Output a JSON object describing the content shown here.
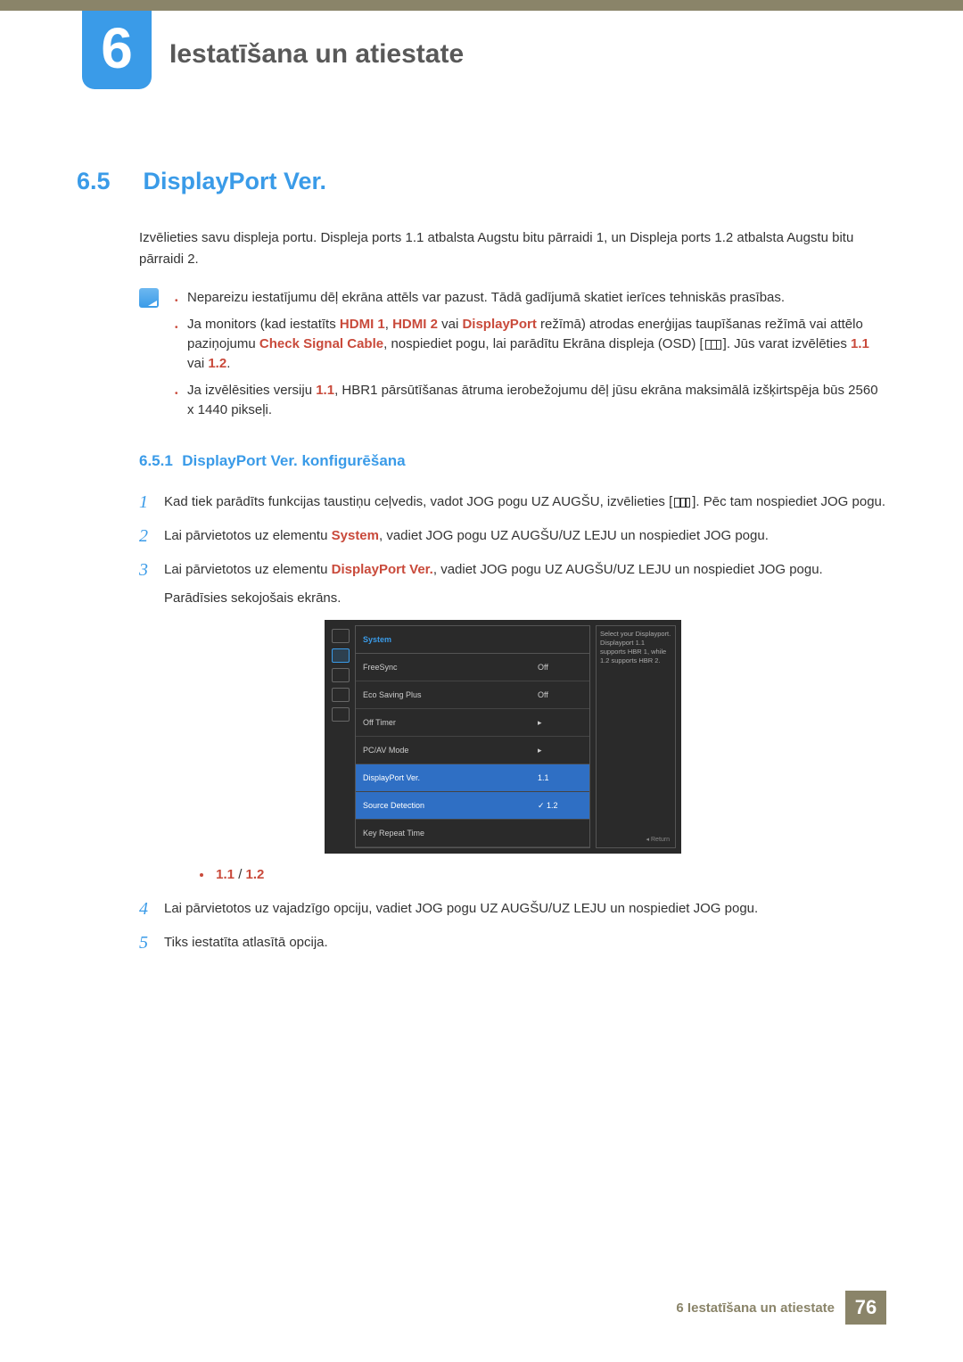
{
  "colors": {
    "accent_blue": "#3a9be8",
    "accent_red": "#c94a3b",
    "footer_olive": "#8a8469",
    "text": "#333333"
  },
  "chapter": {
    "number": "6",
    "title": "Iestatīšana un atiestate"
  },
  "section": {
    "number": "6.5",
    "title": "DisplayPort Ver.",
    "intro": "Izvēlieties savu displeja portu. Displeja ports 1.1 atbalsta Augstu bitu pārraidi 1, un Displeja ports 1.2 atbalsta Augstu bitu pārraidi 2."
  },
  "notes": {
    "n1": "Nepareizu iestatījumu dēļ ekrāna attēls var pazust. Tādā gadījumā skatiet ierīces tehniskās prasības.",
    "n2_a": "Ja monitors (kad iestatīts ",
    "n2_hdmi1": "HDMI 1",
    "n2_sep1": ", ",
    "n2_hdmi2": "HDMI 2",
    "n2_sep2": " vai ",
    "n2_dp": "DisplayPort",
    "n2_b": " režīmā) atrodas enerģijas taupīšanas režīmā vai attēlo paziņojumu ",
    "n2_check": "Check Signal Cable",
    "n2_c": ", nospiediet pogu, lai parādītu Ekrāna displeja (OSD) [",
    "n2_d": "]. Jūs varat izvēlēties ",
    "n2_v11": "1.1",
    "n2_sep3": " vai ",
    "n2_v12": "1.2",
    "n2_e": ".",
    "n3_a": "Ja izvēlēsities versiju ",
    "n3_v": "1.1",
    "n3_b": ", HBR1 pārsūtīšanas ātruma ierobežojumu dēļ jūsu ekrāna maksimālā izšķirtspēja būs 2560 x 1440 pikseļi."
  },
  "subsection": {
    "number": "6.5.1",
    "title": "DisplayPort Ver. konfigurēšana"
  },
  "steps": {
    "s1a": "Kad tiek parādīts funkcijas taustiņu ceļvedis, vadot JOG pogu UZ AUGŠU, izvēlieties [",
    "s1b": "]. Pēc tam nospiediet JOG pogu.",
    "s2a": "Lai pārvietotos uz elementu ",
    "s2_system": "System",
    "s2b": ", vadiet JOG pogu UZ AUGŠU/UZ LEJU un nospiediet JOG pogu.",
    "s3a": "Lai pārvietotos uz elementu ",
    "s3_dp": "DisplayPort Ver.",
    "s3b": ", vadiet JOG pogu UZ AUGŠU/UZ LEJU un nospiediet JOG pogu.",
    "s3c": "Parādīsies sekojošais ekrāns.",
    "opt11": "1.1",
    "optsep": " / ",
    "opt12": "1.2",
    "s4": "Lai pārvietotos uz vajadzīgo opciju, vadiet JOG pogu UZ AUGŠU/UZ LEJU un nospiediet JOG pogu.",
    "s5": "Tiks iestatīta atlasītā opcija."
  },
  "osd": {
    "head": "System",
    "rows": [
      {
        "lbl": "FreeSync",
        "val": "Off"
      },
      {
        "lbl": "Eco Saving Plus",
        "val": "Off"
      },
      {
        "lbl": "Off Timer",
        "val": "▸"
      },
      {
        "lbl": "PC/AV Mode",
        "val": "▸"
      },
      {
        "lbl": "DisplayPort Ver.",
        "val": "1.1"
      },
      {
        "lbl": "Source Detection",
        "val": "1.2"
      },
      {
        "lbl": "Key Repeat Time",
        "val": ""
      }
    ],
    "highlight_index": 4,
    "check_index": 5,
    "help": "Select your Displayport. Displayport 1.1 supports HBR 1, while 1.2 supports HBR 2.",
    "return": "◂  Return"
  },
  "footer": {
    "text": "6 Iestatīšana un atiestate",
    "page": "76"
  }
}
